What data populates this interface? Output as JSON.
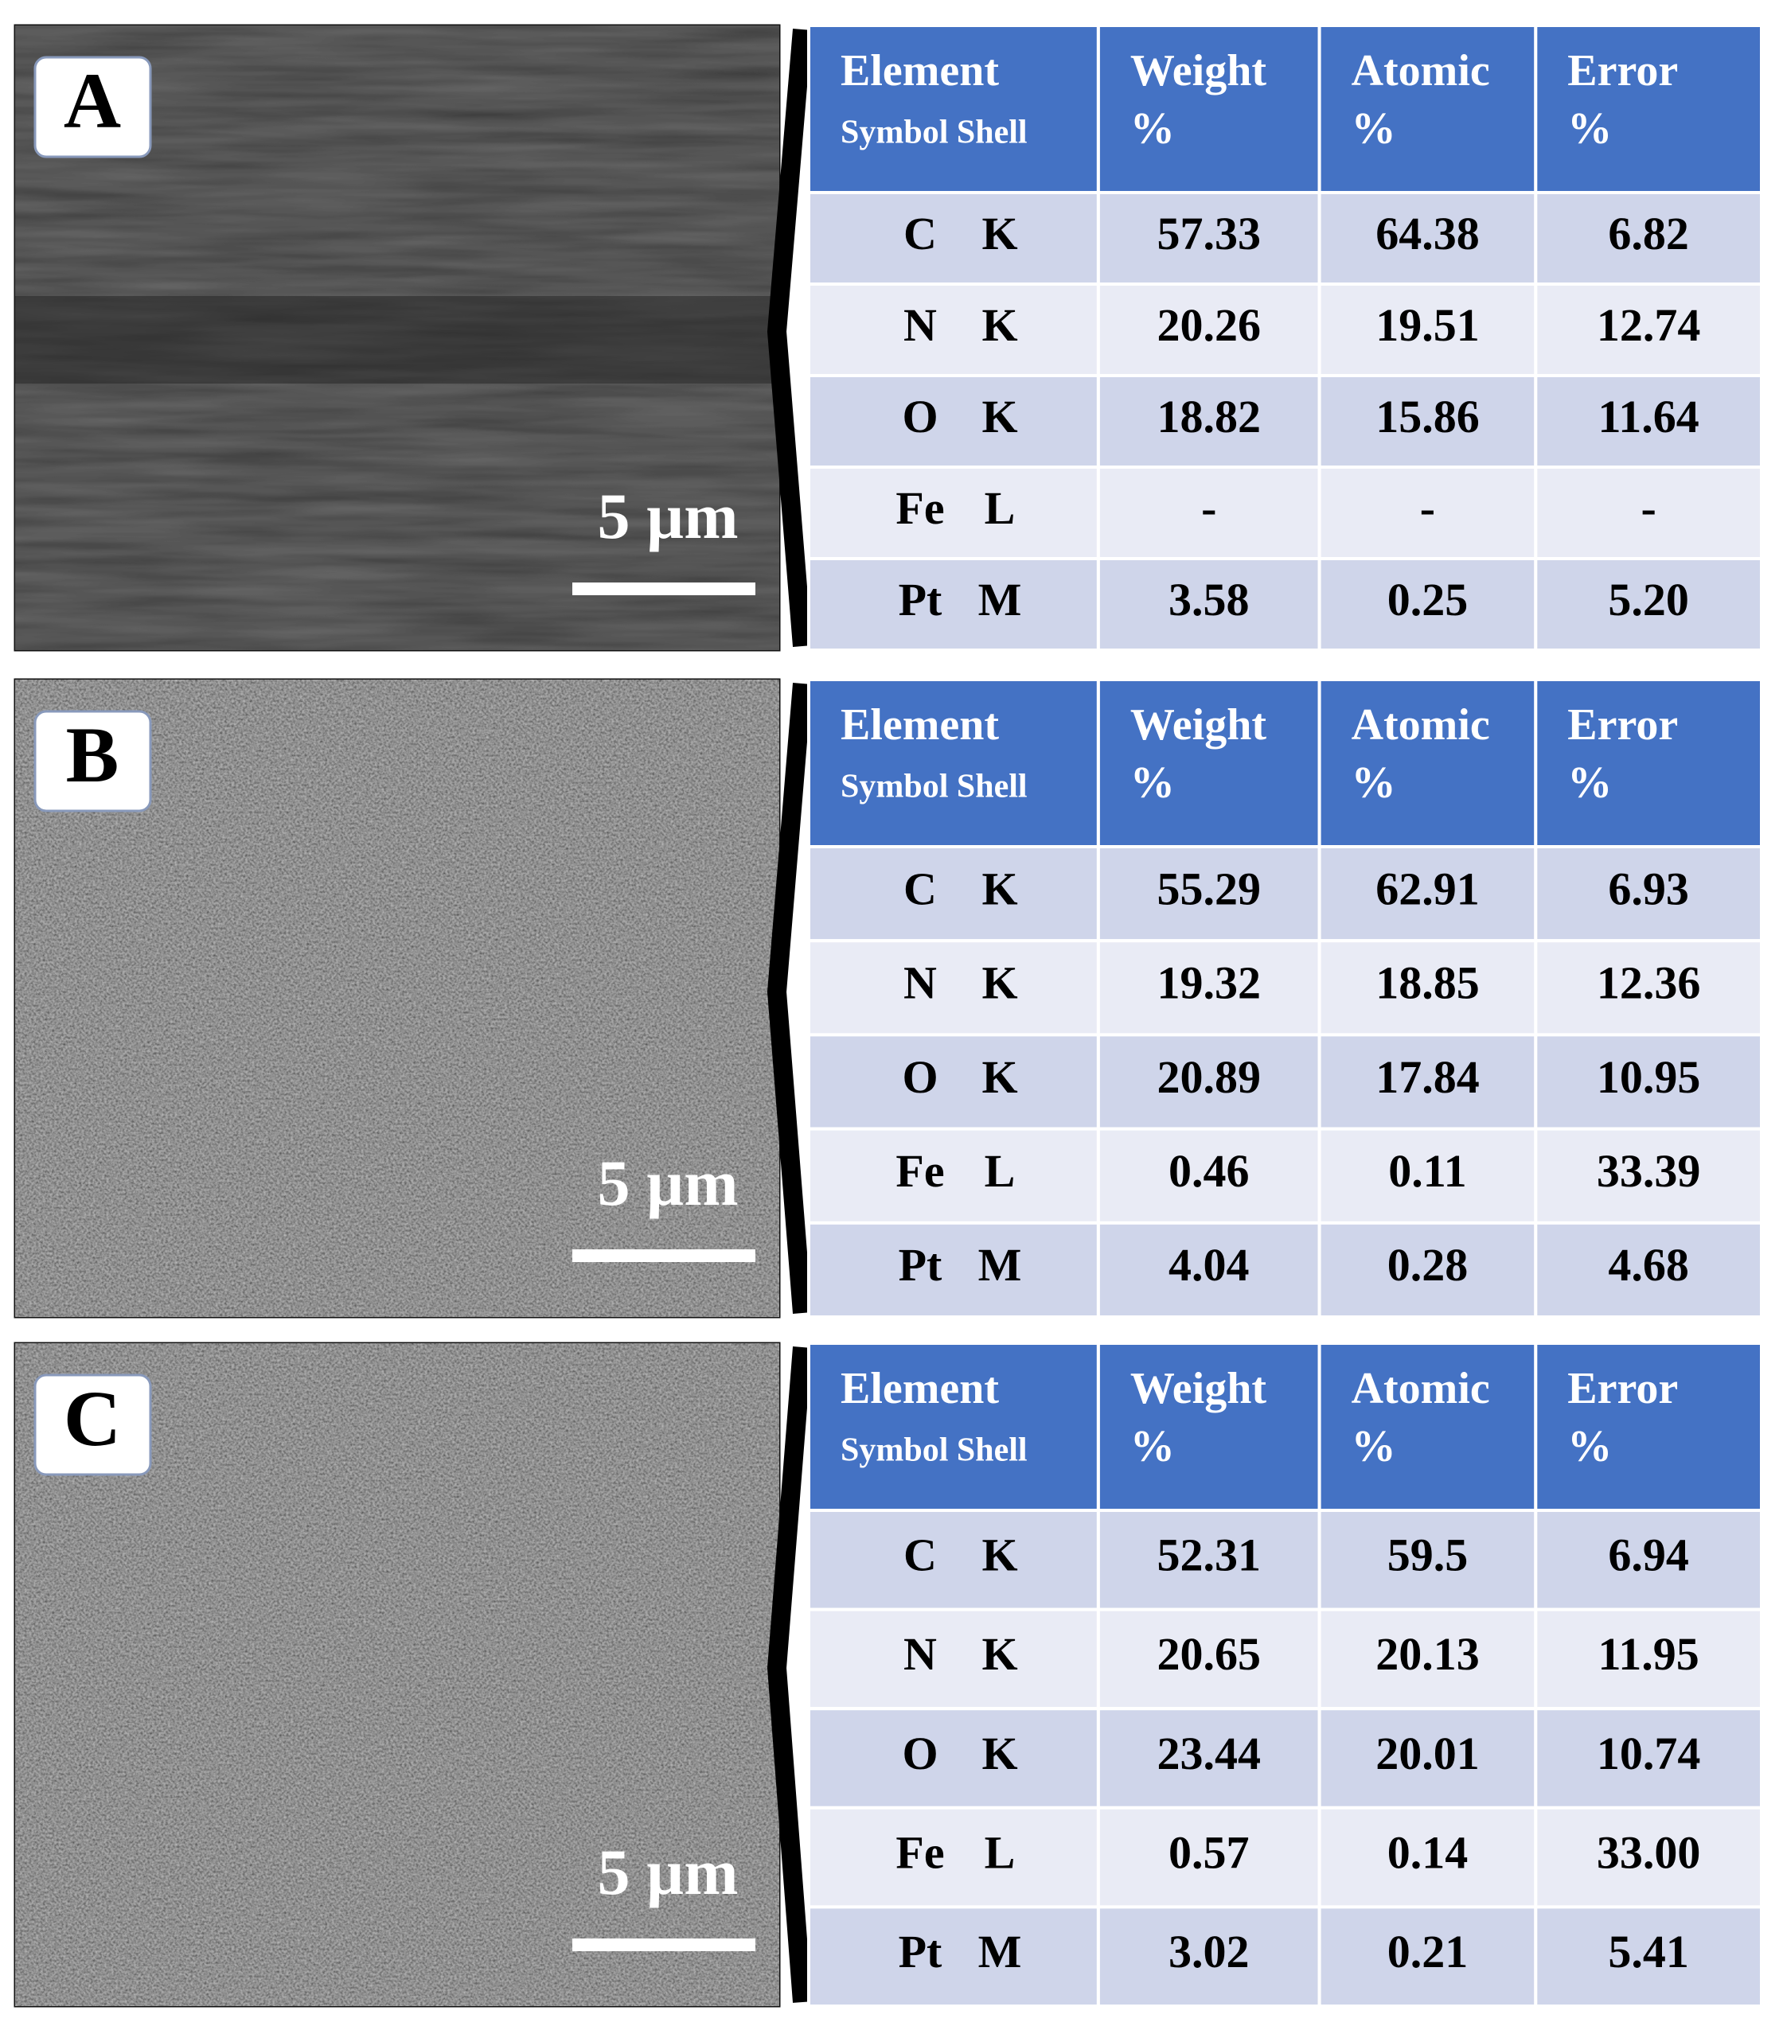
{
  "panels": [
    {
      "label": "A",
      "scale_bar": "5 µm",
      "table": {
        "header": [
          {
            "title": "Element",
            "sub": "Symbol  Shell"
          },
          {
            "title": "Weight",
            "sub": "%"
          },
          {
            "title": "Atomic",
            "sub": "%"
          },
          {
            "title": "Error",
            "sub": "%"
          }
        ],
        "rows": [
          [
            "C",
            "K",
            "57.33",
            "64.38",
            "6.82"
          ],
          [
            "N",
            "K",
            "20.26",
            "19.51",
            "12.74"
          ],
          [
            "O",
            "K",
            "18.82",
            "15.86",
            "11.64"
          ],
          [
            "Fe",
            "L",
            "-",
            "-",
            "-"
          ],
          [
            "Pt",
            "M",
            "3.58",
            "0.25",
            "5.20"
          ]
        ]
      }
    },
    {
      "label": "B",
      "scale_bar": "5 µm",
      "table": {
        "header": [
          {
            "title": "Element",
            "sub": "Symbol  Shell"
          },
          {
            "title": "Weight",
            "sub": "%"
          },
          {
            "title": "Atomic",
            "sub": "%"
          },
          {
            "title": "Error",
            "sub": "%"
          }
        ],
        "rows": [
          [
            "C",
            "K",
            "55.29",
            "62.91",
            "6.93"
          ],
          [
            "N",
            "K",
            "19.32",
            "18.85",
            "12.36"
          ],
          [
            "O",
            "K",
            "20.89",
            "17.84",
            "10.95"
          ],
          [
            "Fe",
            "L",
            "0.46",
            "0.11",
            "33.39"
          ],
          [
            "Pt",
            "M",
            "4.04",
            "0.28",
            "4.68"
          ]
        ]
      }
    },
    {
      "label": "C",
      "scale_bar": "5 µm",
      "table": {
        "header": [
          {
            "title": "Element",
            "sub": "Symbol Shell"
          },
          {
            "title": "Weight",
            "sub": "%"
          },
          {
            "title": "Atomic",
            "sub": "%"
          },
          {
            "title": "Error",
            "sub": "%"
          }
        ],
        "rows": [
          [
            "C",
            "K",
            "52.31",
            "59.5",
            "6.94"
          ],
          [
            "N",
            "K",
            "20.65",
            "20.13",
            "11.95"
          ],
          [
            "O",
            "K",
            "23.44",
            "20.01",
            "10.74"
          ],
          [
            "Fe",
            "L",
            "0.57",
            "0.14",
            "33.00"
          ],
          [
            "Pt",
            "M",
            "3.02",
            "0.21",
            "5.41"
          ]
        ]
      }
    }
  ]
}
